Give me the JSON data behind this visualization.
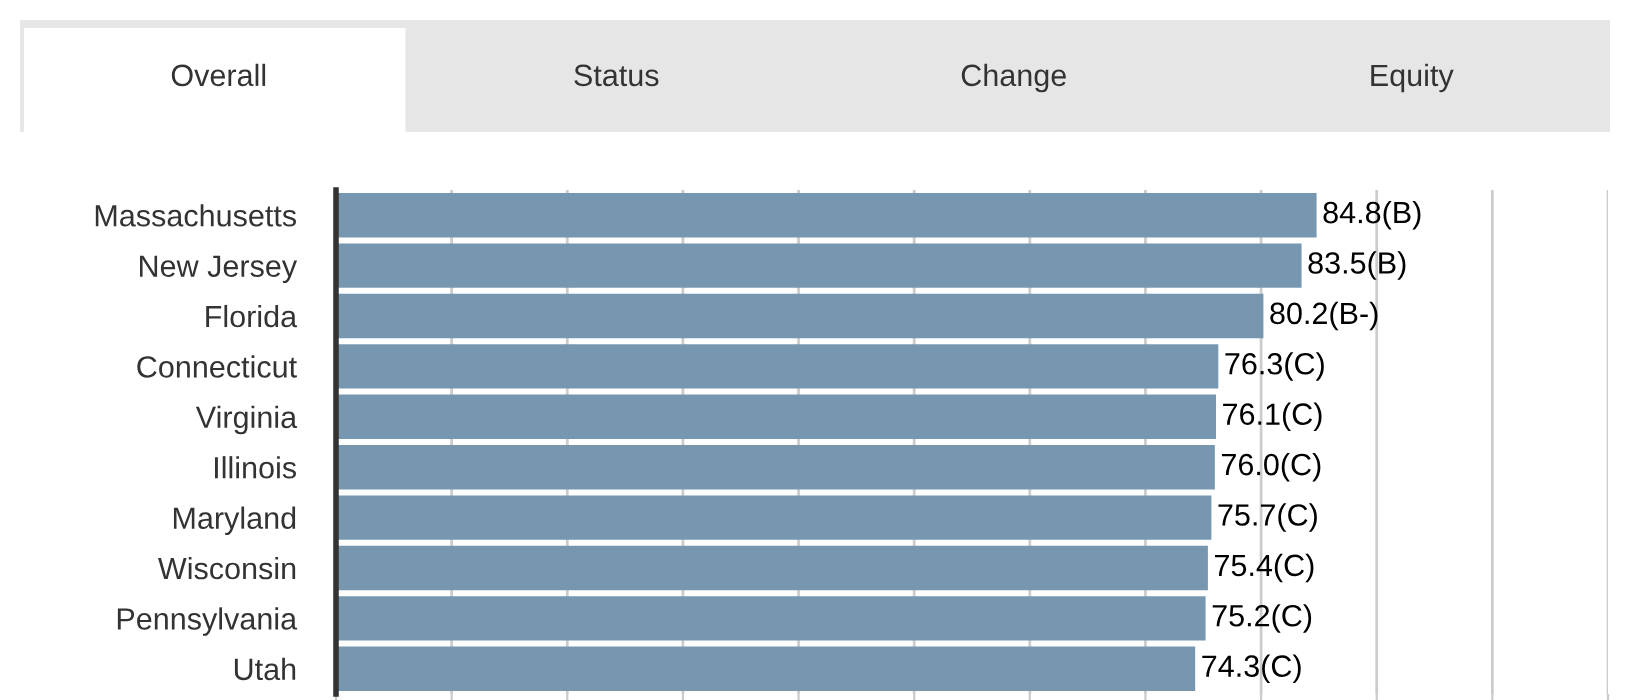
{
  "chart_data": {
    "type": "bar",
    "orientation": "horizontal",
    "categories": [
      "Massachusetts",
      "New Jersey",
      "Florida",
      "Connecticut",
      "Virginia",
      "Illinois",
      "Maryland",
      "Wisconsin",
      "Pennsylvania",
      "Utah"
    ],
    "values": [
      84.8,
      83.5,
      80.2,
      76.3,
      76.1,
      76.0,
      75.7,
      75.4,
      75.2,
      74.3
    ],
    "value_labels": [
      "84.8(B)",
      "83.5(B)",
      "80.2(B-)",
      "76.3(C)",
      "76.1(C)",
      "76.0(C)",
      "75.7(C)",
      "75.4(C)",
      "75.2(C)",
      "74.3(C)"
    ],
    "color": "#7697af",
    "xlim": [
      0,
      110
    ],
    "xticks": [
      {
        "value": 0,
        "label": null
      },
      {
        "value": 10,
        "label": null
      },
      {
        "value": 20,
        "label": null
      },
      {
        "value": 30,
        "label": null
      },
      {
        "value": 40,
        "label": null
      },
      {
        "value": 50,
        "label": null
      },
      {
        "value": 60,
        "label": null
      },
      {
        "value": 70,
        "label": null
      },
      {
        "value": 80,
        "label": null
      },
      {
        "value": 90,
        "label": null
      },
      {
        "value": 100,
        "label": null
      },
      {
        "value": 110,
        "label": null
      }
    ],
    "tick_labels": "y",
    "grid": "x",
    "annotations": [
      "Overall",
      "Status",
      "Change",
      "Equity"
    ]
  }
}
